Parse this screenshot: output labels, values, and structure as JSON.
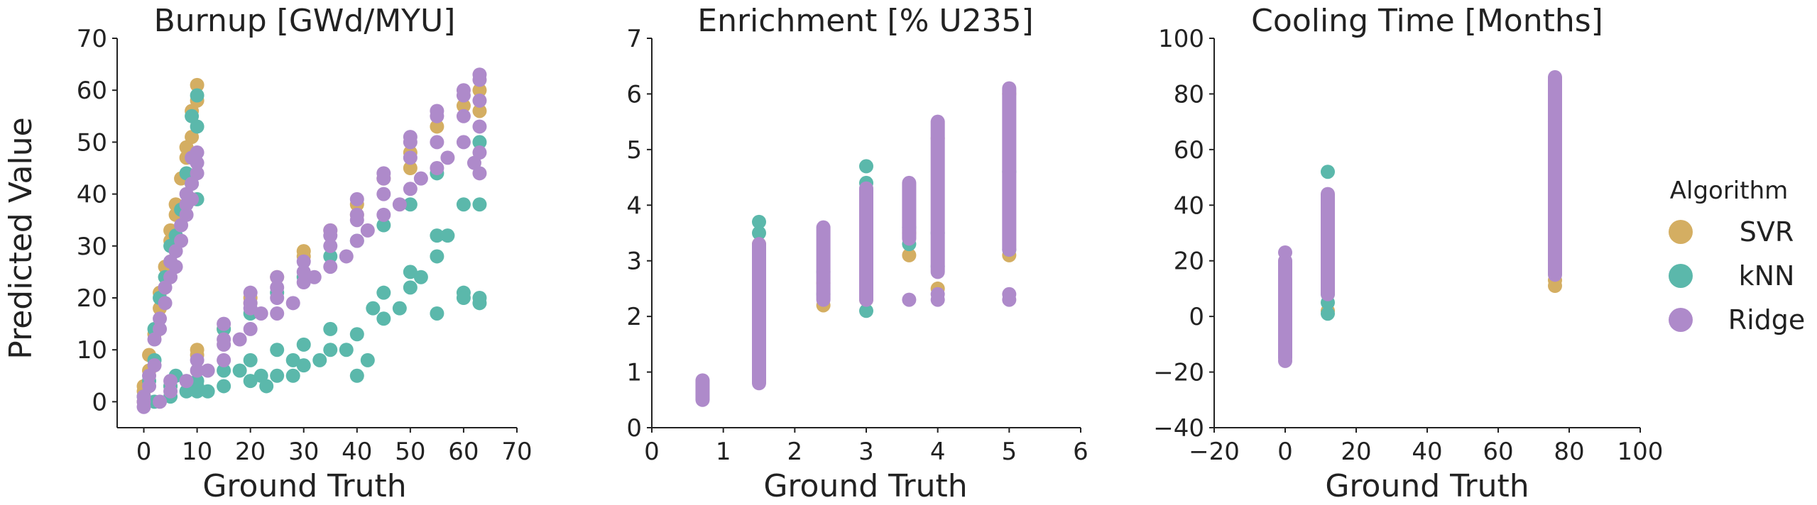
{
  "figure": {
    "ylabel": "Predicted Value",
    "legend": {
      "title": "Algorithm",
      "entries": [
        {
          "label": "SVR",
          "color": "#D4AE62"
        },
        {
          "label": "kNN",
          "color": "#5BB8AB"
        },
        {
          "label": "Ridge",
          "color": "#AE8ACA"
        }
      ]
    }
  },
  "chart_data": [
    {
      "type": "scatter",
      "title": "Burnup [GWd/MYU]",
      "xlabel": "Ground Truth",
      "ylabel": "Predicted Value",
      "xlim": [
        -5,
        70
      ],
      "ylim": [
        -5,
        70
      ],
      "xticks": [
        0,
        10,
        20,
        30,
        40,
        50,
        60,
        70
      ],
      "yticks": [
        0,
        10,
        20,
        30,
        40,
        50,
        60,
        70
      ],
      "grid": false,
      "series": [
        {
          "name": "SVR",
          "points": [
            [
              0,
              0
            ],
            [
              0,
              3
            ],
            [
              1,
              9
            ],
            [
              1,
              6
            ],
            [
              2,
              13
            ],
            [
              3,
              21
            ],
            [
              3,
              18
            ],
            [
              4,
              26
            ],
            [
              5,
              31
            ],
            [
              5,
              33
            ],
            [
              6,
              36
            ],
            [
              6,
              38
            ],
            [
              7,
              43
            ],
            [
              8,
              47
            ],
            [
              8,
              49
            ],
            [
              9,
              51
            ],
            [
              9,
              56
            ],
            [
              10,
              61
            ],
            [
              10,
              58
            ],
            [
              0,
              2
            ],
            [
              5,
              3
            ],
            [
              10,
              9
            ],
            [
              15,
              14
            ],
            [
              20,
              20
            ],
            [
              25,
              24
            ],
            [
              30,
              28
            ],
            [
              35,
              33
            ],
            [
              40,
              36
            ],
            [
              45,
              43
            ],
            [
              50,
              48
            ],
            [
              55,
              53
            ],
            [
              60,
              57
            ],
            [
              63,
              56
            ],
            [
              63,
              60
            ],
            [
              50,
              45
            ],
            [
              40,
              38
            ],
            [
              30,
              29
            ],
            [
              20,
              19
            ],
            [
              10,
              10
            ]
          ]
        },
        {
          "name": "kNN",
          "points": [
            [
              0,
              1
            ],
            [
              1,
              4
            ],
            [
              2,
              8
            ],
            [
              2,
              14
            ],
            [
              3,
              20
            ],
            [
              4,
              24
            ],
            [
              5,
              30
            ],
            [
              6,
              32
            ],
            [
              7,
              37
            ],
            [
              8,
              44
            ],
            [
              9,
              55
            ],
            [
              10,
              59
            ],
            [
              10,
              53
            ],
            [
              9,
              42
            ],
            [
              10,
              39
            ],
            [
              5,
              3
            ],
            [
              6,
              5
            ],
            [
              8,
              2
            ],
            [
              10,
              2
            ],
            [
              10,
              3
            ],
            [
              12,
              2
            ],
            [
              15,
              3
            ],
            [
              15,
              6
            ],
            [
              18,
              6
            ],
            [
              20,
              4
            ],
            [
              20,
              8
            ],
            [
              22,
              5
            ],
            [
              23,
              3
            ],
            [
              25,
              5
            ],
            [
              25,
              10
            ],
            [
              28,
              5
            ],
            [
              28,
              8
            ],
            [
              30,
              7
            ],
            [
              30,
              11
            ],
            [
              33,
              8
            ],
            [
              35,
              10
            ],
            [
              35,
              14
            ],
            [
              38,
              10
            ],
            [
              40,
              13
            ],
            [
              40,
              5
            ],
            [
              42,
              8
            ],
            [
              43,
              18
            ],
            [
              45,
              16
            ],
            [
              45,
              21
            ],
            [
              48,
              18
            ],
            [
              50,
              22
            ],
            [
              50,
              25
            ],
            [
              52,
              24
            ],
            [
              55,
              28
            ],
            [
              55,
              32
            ],
            [
              55,
              17
            ],
            [
              57,
              32
            ],
            [
              60,
              38
            ],
            [
              60,
              21
            ],
            [
              63,
              38
            ],
            [
              63,
              19
            ],
            [
              63,
              50
            ],
            [
              55,
              44
            ],
            [
              50,
              38
            ],
            [
              45,
              34
            ],
            [
              40,
              31
            ],
            [
              35,
              28
            ],
            [
              30,
              24
            ],
            [
              25,
              21
            ],
            [
              20,
              17
            ],
            [
              15,
              14
            ],
            [
              2,
              0
            ],
            [
              5,
              1
            ],
            [
              10,
              4
            ],
            [
              60,
              20
            ],
            [
              63,
              20
            ]
          ]
        },
        {
          "name": "Ridge",
          "points": [
            [
              0,
              -1
            ],
            [
              0,
              1
            ],
            [
              1,
              3
            ],
            [
              1,
              5
            ],
            [
              2,
              7
            ],
            [
              2,
              12
            ],
            [
              3,
              14
            ],
            [
              3,
              16
            ],
            [
              4,
              19
            ],
            [
              4,
              22
            ],
            [
              5,
              24
            ],
            [
              5,
              27
            ],
            [
              6,
              26
            ],
            [
              6,
              29
            ],
            [
              7,
              31
            ],
            [
              7,
              34
            ],
            [
              8,
              36
            ],
            [
              8,
              38
            ],
            [
              9,
              39
            ],
            [
              9,
              42
            ],
            [
              10,
              44
            ],
            [
              10,
              46
            ],
            [
              10,
              48
            ],
            [
              9,
              47
            ],
            [
              8,
              40
            ],
            [
              3,
              0
            ],
            [
              5,
              2
            ],
            [
              8,
              4
            ],
            [
              10,
              6
            ],
            [
              12,
              6
            ],
            [
              15,
              8
            ],
            [
              15,
              11
            ],
            [
              15,
              15
            ],
            [
              18,
              12
            ],
            [
              20,
              14
            ],
            [
              20,
              18
            ],
            [
              20,
              21
            ],
            [
              22,
              17
            ],
            [
              25,
              17
            ],
            [
              25,
              20
            ],
            [
              25,
              24
            ],
            [
              28,
              19
            ],
            [
              30,
              23
            ],
            [
              30,
              27
            ],
            [
              32,
              24
            ],
            [
              35,
              26
            ],
            [
              35,
              30
            ],
            [
              35,
              33
            ],
            [
              38,
              28
            ],
            [
              40,
              31
            ],
            [
              40,
              35
            ],
            [
              40,
              39
            ],
            [
              42,
              33
            ],
            [
              45,
              36
            ],
            [
              45,
              40
            ],
            [
              45,
              44
            ],
            [
              48,
              38
            ],
            [
              50,
              41
            ],
            [
              50,
              47
            ],
            [
              50,
              51
            ],
            [
              52,
              43
            ],
            [
              55,
              45
            ],
            [
              55,
              50
            ],
            [
              55,
              55
            ],
            [
              57,
              47
            ],
            [
              60,
              50
            ],
            [
              60,
              55
            ],
            [
              60,
              60
            ],
            [
              62,
              46
            ],
            [
              63,
              44
            ],
            [
              63,
              48
            ],
            [
              63,
              53
            ],
            [
              63,
              58
            ],
            [
              63,
              62
            ],
            [
              63,
              63
            ],
            [
              60,
              59
            ],
            [
              55,
              56
            ],
            [
              50,
              50
            ],
            [
              45,
              43
            ],
            [
              40,
              36
            ],
            [
              35,
              32
            ],
            [
              30,
              25
            ],
            [
              25,
              22
            ],
            [
              20,
              19
            ],
            [
              15,
              12
            ],
            [
              10,
              8
            ],
            [
              5,
              4
            ],
            [
              0,
              0
            ]
          ]
        }
      ]
    },
    {
      "type": "scatter",
      "title": "Enrichment [% U235]",
      "xlabel": "Ground Truth",
      "ylabel": "",
      "xlim": [
        0,
        6
      ],
      "ylim": [
        0,
        7
      ],
      "xticks": [
        0,
        1,
        2,
        3,
        4,
        5,
        6
      ],
      "yticks": [
        0,
        1,
        2,
        3,
        4,
        5,
        6,
        7
      ],
      "grid": false,
      "series": [
        {
          "name": "SVR",
          "points": [
            [
              1.5,
              3.3
            ],
            [
              2.4,
              2.2
            ],
            [
              2.4,
              2.6
            ],
            [
              3.0,
              2.3
            ],
            [
              3.6,
              3.1
            ],
            [
              3.6,
              3.5
            ],
            [
              4.0,
              2.5
            ],
            [
              4.0,
              5.2
            ],
            [
              5.0,
              3.1
            ],
            [
              5.0,
              6.0
            ]
          ]
        },
        {
          "name": "kNN",
          "points": [
            [
              1.5,
              3.7
            ],
            [
              1.5,
              3.5
            ],
            [
              2.4,
              2.8
            ],
            [
              2.4,
              2.4
            ],
            [
              3.0,
              4.7
            ],
            [
              3.0,
              4.4
            ],
            [
              3.0,
              2.1
            ],
            [
              3.0,
              4.1
            ],
            [
              3.6,
              3.6
            ],
            [
              3.6,
              3.3
            ],
            [
              4.0,
              3.5
            ],
            [
              4.0,
              2.9
            ],
            [
              5.0,
              3.2
            ],
            [
              5.0,
              4.6
            ]
          ]
        },
        {
          "name": "Ridge",
          "ranges": [
            [
              0.71,
              0.5,
              0.85
            ],
            [
              1.5,
              0.8,
              3.3
            ],
            [
              2.4,
              2.3,
              3.6
            ],
            [
              3.0,
              2.3,
              4.3
            ],
            [
              3.6,
              3.4,
              4.4
            ],
            [
              4.0,
              2.8,
              5.5
            ],
            [
              5.0,
              3.2,
              6.1
            ]
          ],
          "points": [
            [
              3.6,
              2.3
            ],
            [
              4.0,
              2.3
            ],
            [
              4.0,
              2.4
            ],
            [
              5.0,
              2.3
            ],
            [
              5.0,
              2.4
            ]
          ]
        }
      ]
    },
    {
      "type": "scatter",
      "title": "Cooling Time [Months]",
      "xlabel": "Ground Truth",
      "ylabel": "",
      "xlim": [
        -20,
        100
      ],
      "ylim": [
        -40,
        100
      ],
      "xticks": [
        -20,
        0,
        20,
        40,
        60,
        80,
        100
      ],
      "yticks": [
        -40,
        -20,
        0,
        20,
        40,
        60,
        80,
        100
      ],
      "grid": false,
      "series": [
        {
          "name": "SVR",
          "points": [
            [
              0,
              -10
            ],
            [
              0,
              18
            ],
            [
              12,
              2
            ],
            [
              12,
              38
            ],
            [
              76,
              11
            ],
            [
              76,
              13
            ],
            [
              76,
              80
            ]
          ]
        },
        {
          "name": "kNN",
          "points": [
            [
              0,
              0
            ],
            [
              0,
              15
            ],
            [
              12,
              52
            ],
            [
              12,
              1
            ],
            [
              12,
              5
            ],
            [
              12,
              8
            ],
            [
              76,
              20
            ],
            [
              76,
              70
            ]
          ]
        },
        {
          "name": "Ridge",
          "ranges": [
            [
              0,
              -15,
              20
            ],
            [
              12,
              8,
              44
            ],
            [
              76,
              15,
              86
            ]
          ],
          "points": [
            [
              0,
              23
            ],
            [
              0,
              -16
            ]
          ]
        }
      ]
    }
  ]
}
